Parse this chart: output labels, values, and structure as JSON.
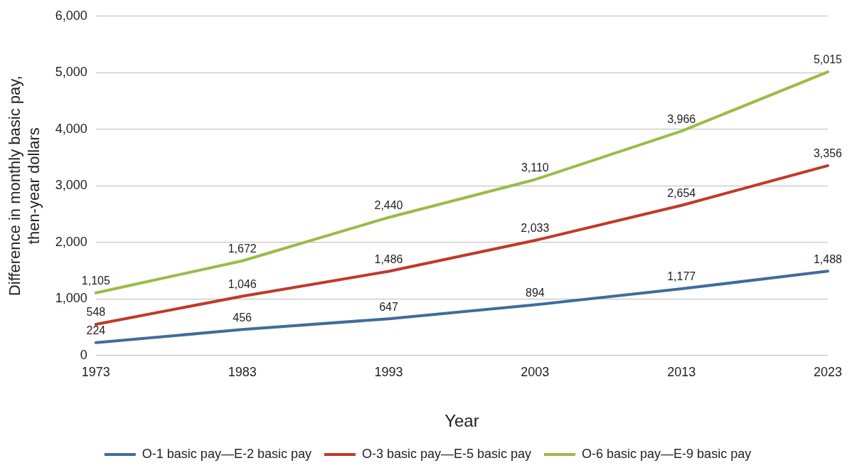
{
  "chart_data": {
    "type": "line",
    "xlabel": "Year",
    "ylabel": "Difference in monthly basic pay, then-year dollars",
    "categories": [
      "1973",
      "1983",
      "1993",
      "2003",
      "2013",
      "2023"
    ],
    "series": [
      {
        "name": "O-1 basic pay—E-2 basic pay",
        "color": "#3e6d9c",
        "values": [
          224,
          456,
          647,
          894,
          1177,
          1488
        ],
        "value_labels": [
          "224",
          "456",
          "647",
          "894",
          "1,177",
          "1,488"
        ]
      },
      {
        "name": "O-3 basic pay—E-5 basic pay",
        "color": "#c0392a",
        "values": [
          548,
          1046,
          1486,
          2033,
          2654,
          3356
        ],
        "value_labels": [
          "548",
          "1,046",
          "1,486",
          "2,033",
          "2,654",
          "3,356"
        ]
      },
      {
        "name": "O-6 basic pay—E-9 basic pay",
        "color": "#9bbb47",
        "values": [
          1105,
          1672,
          2440,
          3110,
          3966,
          5015
        ],
        "value_labels": [
          "1,105",
          "1,672",
          "2,440",
          "3,110",
          "3,966",
          "5,015"
        ]
      }
    ],
    "ylim": [
      0,
      6000
    ],
    "yticks": [
      0,
      {
        "value": 1000,
        "label": "1,000"
      },
      {
        "value": 2000,
        "label": "2,000"
      },
      {
        "value": 3000,
        "label": "3,000"
      },
      {
        "value": 4000,
        "label": "4,000"
      },
      {
        "value": 5000,
        "label": "5,000"
      },
      {
        "value": 6000,
        "label": "6,000"
      }
    ],
    "grid": "y",
    "legend": "bottom",
    "marker": "none",
    "line_style": "solid"
  }
}
